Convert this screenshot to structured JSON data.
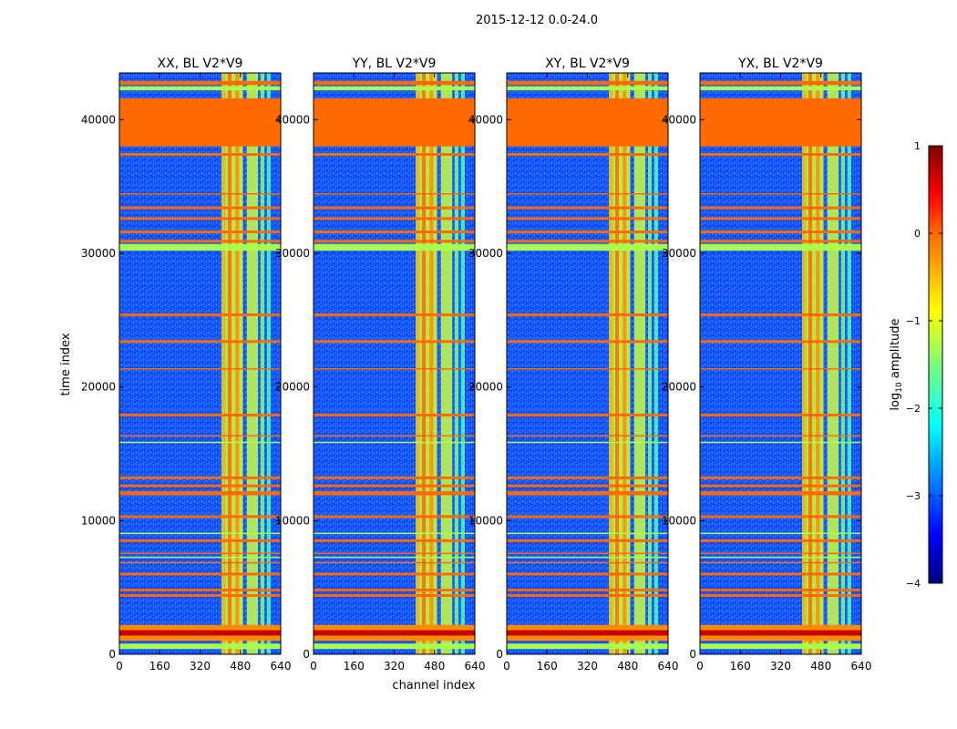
{
  "chart_data": {
    "type": "heatmap",
    "suptitle": "2015-12-12 0.0-24.0",
    "xlabel": "channel index",
    "ylabel": "time index",
    "xlim": [
      0,
      640
    ],
    "ylim": [
      0,
      43500
    ],
    "x_ticks": [
      0,
      160,
      320,
      480,
      640
    ],
    "y_ticks": [
      0,
      10000,
      20000,
      30000,
      40000
    ],
    "panels": [
      {
        "title": "XX, BL V2*V9",
        "pol": "XX"
      },
      {
        "title": "YY, BL V2*V9",
        "pol": "YY"
      },
      {
        "title": "XY, BL V2*V9",
        "pol": "XY"
      },
      {
        "title": "YX, BL V2*V9",
        "pol": "YX"
      }
    ],
    "colorbar": {
      "label_prefix": "log",
      "label_sub": "10",
      "label_suffix": " amplitude",
      "range": [
        -4,
        1
      ],
      "ticks": [
        1,
        0,
        -1,
        -2,
        -3,
        -4
      ],
      "tick_labels": [
        "1",
        "0",
        "−1",
        "−2",
        "−3",
        "−4"
      ],
      "colormap": "jet"
    },
    "flagged_time_ranges": [
      [
        42600,
        42900
      ],
      [
        38000,
        41600
      ],
      [
        37300,
        37500
      ],
      [
        34400,
        34500
      ],
      [
        33300,
        33500
      ],
      [
        32500,
        32700
      ],
      [
        31500,
        31700
      ],
      [
        30800,
        31000
      ],
      [
        25300,
        25500
      ],
      [
        23300,
        23500
      ],
      [
        21300,
        21400
      ],
      [
        17800,
        18000
      ],
      [
        16300,
        16400
      ],
      [
        13100,
        13300
      ],
      [
        12500,
        12700
      ],
      [
        11900,
        12200
      ],
      [
        10200,
        10400
      ],
      [
        8400,
        8600
      ],
      [
        7500,
        7600
      ],
      [
        6800,
        6900
      ],
      [
        5900,
        6100
      ],
      [
        4700,
        4900
      ],
      [
        4300,
        4500
      ]
    ],
    "rfi_time_ranges": [
      [
        42200,
        42500
      ],
      [
        30200,
        30700
      ],
      [
        15800,
        15900
      ],
      [
        9000,
        9100
      ],
      [
        7200,
        7300
      ],
      [
        400,
        800
      ]
    ],
    "colors": {
      "flag": "#ff6a00",
      "rfi": "#a8ff4c",
      "background": "#1a56ff"
    }
  }
}
